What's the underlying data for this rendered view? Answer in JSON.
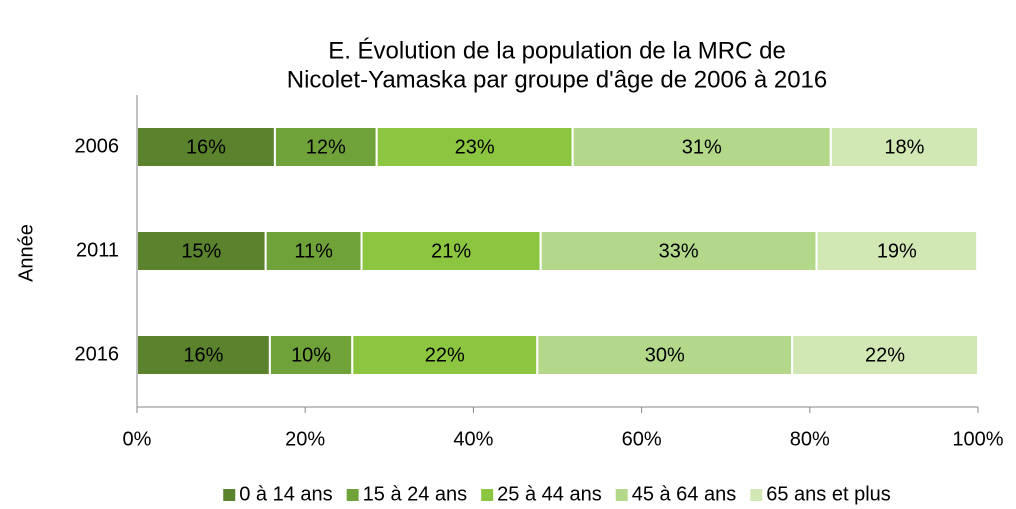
{
  "chart_data": {
    "type": "stacked-barh",
    "title": [
      "E. Évolution de la population de la MRC de",
      "Nicolet-Yamaska par groupe d'âge de 2006 à 2016"
    ],
    "y_label": "Année",
    "categories": [
      "2006",
      "2011",
      "2016"
    ],
    "series": [
      {
        "name": "0 à 14 ans",
        "color": "#5b822d",
        "values": [
          16.4,
          15.3,
          15.8
        ],
        "value_labels": [
          "16%",
          "15%",
          "16%"
        ]
      },
      {
        "name": "15 à 24 ans",
        "color": "#70a23a",
        "values": [
          12.1,
          11.4,
          9.8
        ],
        "value_labels": [
          "12%",
          "11%",
          "10%"
        ]
      },
      {
        "name": "25 à 44 ans",
        "color": "#8cc641",
        "values": [
          23.3,
          21.3,
          22.0
        ],
        "value_labels": [
          "23%",
          "21%",
          "22%"
        ]
      },
      {
        "name": "45 à 64 ans",
        "color": "#b3d88a",
        "values": [
          30.7,
          32.8,
          30.3
        ],
        "value_labels": [
          "31%",
          "33%",
          "30%"
        ]
      },
      {
        "name": "65 ans et plus",
        "color": "#d1e7b4",
        "values": [
          17.5,
          19.1,
          22.1
        ],
        "value_labels": [
          "18%",
          "19%",
          "22%"
        ]
      }
    ],
    "xlim": [
      0,
      100
    ],
    "xticks": [
      {
        "value": 0,
        "label": "0%"
      },
      {
        "value": 20,
        "label": "20%"
      },
      {
        "value": 40,
        "label": "40%"
      },
      {
        "value": 60,
        "label": "60%"
      },
      {
        "value": 80,
        "label": "80%"
      },
      {
        "value": 100,
        "label": "100%"
      }
    ],
    "legend": "bottom"
  }
}
